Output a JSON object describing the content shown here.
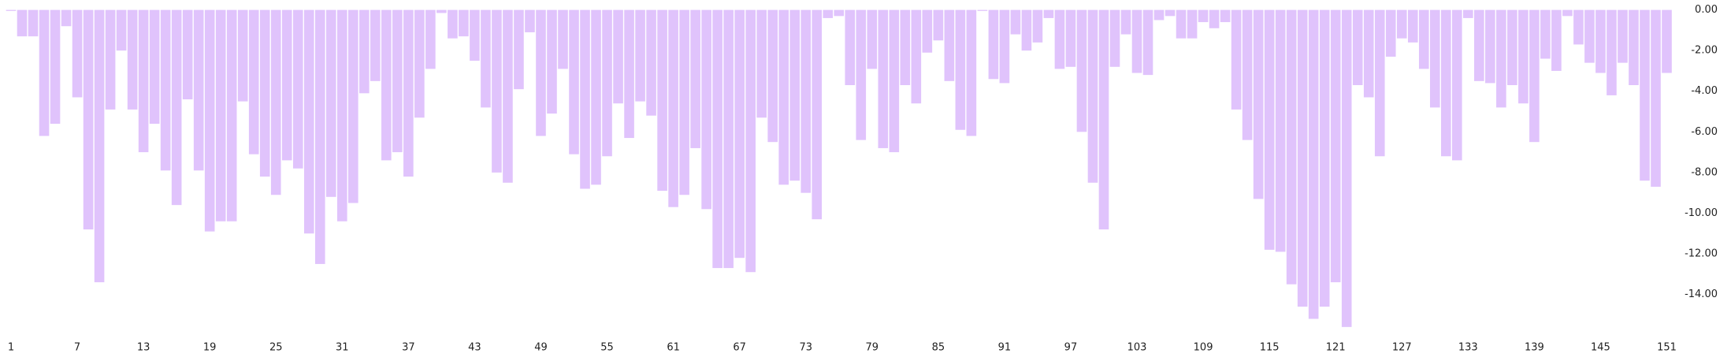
{
  "chart_data": {
    "type": "bar",
    "categories": [
      "1",
      null,
      null,
      null,
      null,
      null,
      "7",
      null,
      null,
      null,
      null,
      null,
      "13",
      null,
      null,
      null,
      null,
      null,
      "19",
      null,
      null,
      null,
      null,
      null,
      "25",
      null,
      null,
      null,
      null,
      null,
      "31",
      null,
      null,
      null,
      null,
      null,
      "37",
      null,
      null,
      null,
      null,
      null,
      "43",
      null,
      null,
      null,
      null,
      null,
      "49",
      null,
      null,
      null,
      null,
      null,
      "55",
      null,
      null,
      null,
      null,
      null,
      "61",
      null,
      null,
      null,
      null,
      null,
      "67",
      null,
      null,
      null,
      null,
      null,
      "73",
      null,
      null,
      null,
      null,
      null,
      "79",
      null,
      null,
      null,
      null,
      null,
      "85",
      null,
      null,
      null,
      null,
      null,
      "91",
      null,
      null,
      null,
      null,
      null,
      "97",
      null,
      null,
      null,
      null,
      null,
      "103",
      null,
      null,
      null,
      null,
      null,
      "109",
      null,
      null,
      null,
      null,
      null,
      "115",
      null,
      null,
      null,
      null,
      null,
      "121",
      null,
      null,
      null,
      null,
      null,
      "127",
      null,
      null,
      null,
      null,
      null,
      "133",
      null,
      null,
      null,
      null,
      null,
      "139",
      null,
      null,
      null,
      null,
      null,
      "145",
      null,
      null,
      null,
      null,
      null,
      "151"
    ],
    "values": [
      -0.05,
      -1.3,
      -1.3,
      -6.2,
      -5.6,
      -0.8,
      -4.3,
      -10.8,
      -13.4,
      -4.9,
      -2.0,
      -4.9,
      -7.0,
      -5.6,
      -7.9,
      -9.6,
      -4.4,
      -7.9,
      -10.9,
      -10.4,
      -10.4,
      -4.5,
      -7.1,
      -8.2,
      -9.1,
      -7.4,
      -7.8,
      -11.0,
      -12.5,
      -9.2,
      -10.4,
      -9.5,
      -4.1,
      -3.5,
      -7.4,
      -7.0,
      -8.2,
      -5.3,
      -2.9,
      -0.15,
      -1.4,
      -1.3,
      -2.5,
      -4.8,
      -8.0,
      -8.5,
      -3.9,
      -1.1,
      -6.2,
      -5.1,
      -2.9,
      -7.1,
      -8.8,
      -8.6,
      -7.2,
      -4.6,
      -6.3,
      -4.5,
      -5.2,
      -8.9,
      -9.7,
      -9.1,
      -6.8,
      -9.8,
      -12.7,
      -12.7,
      -12.2,
      -12.9,
      -5.3,
      -6.5,
      -8.6,
      -8.4,
      -9.0,
      -10.3,
      -0.4,
      -0.3,
      -3.7,
      -6.4,
      -2.9,
      -6.8,
      -7.0,
      -3.7,
      -4.6,
      -2.1,
      -1.5,
      -3.5,
      -5.9,
      -6.2,
      -0.05,
      -3.4,
      -3.6,
      -1.2,
      -2.0,
      -1.6,
      -0.4,
      -2.9,
      -2.8,
      -6.0,
      -8.5,
      -10.8,
      -2.8,
      -1.2,
      -3.1,
      -3.2,
      -0.5,
      -0.3,
      -1.4,
      -1.4,
      -0.6,
      -0.9,
      -0.6,
      -4.9,
      -6.4,
      -9.3,
      -11.8,
      -11.9,
      -13.5,
      -14.6,
      -15.2,
      -14.6,
      -13.4,
      -15.6,
      -3.7,
      -4.3,
      -7.2,
      -2.3,
      -1.4,
      -1.6,
      -2.9,
      -4.8,
      -7.2,
      -7.4,
      -0.4,
      -3.5,
      -3.6,
      -4.8,
      -3.7,
      -4.6,
      -6.5,
      -2.4,
      -3.0,
      -0.3,
      -1.7,
      -2.6,
      -3.1,
      -4.2,
      -2.6,
      -3.7,
      -8.4,
      -8.7,
      -3.1
    ],
    "color": "#e0c3fc",
    "ylim": [
      -15.8,
      0
    ],
    "yticks": [
      {
        "value": 0,
        "label": "0.00"
      },
      {
        "value": -2,
        "label": "-2.00"
      },
      {
        "value": -4,
        "label": "-4.00"
      },
      {
        "value": -6,
        "label": "-6.00"
      },
      {
        "value": -8,
        "label": "-8.00"
      },
      {
        "value": -10,
        "label": "-10.00"
      },
      {
        "value": -12,
        "label": "-12.00"
      },
      {
        "value": -14,
        "label": "-14.00"
      }
    ],
    "grid": false
  }
}
